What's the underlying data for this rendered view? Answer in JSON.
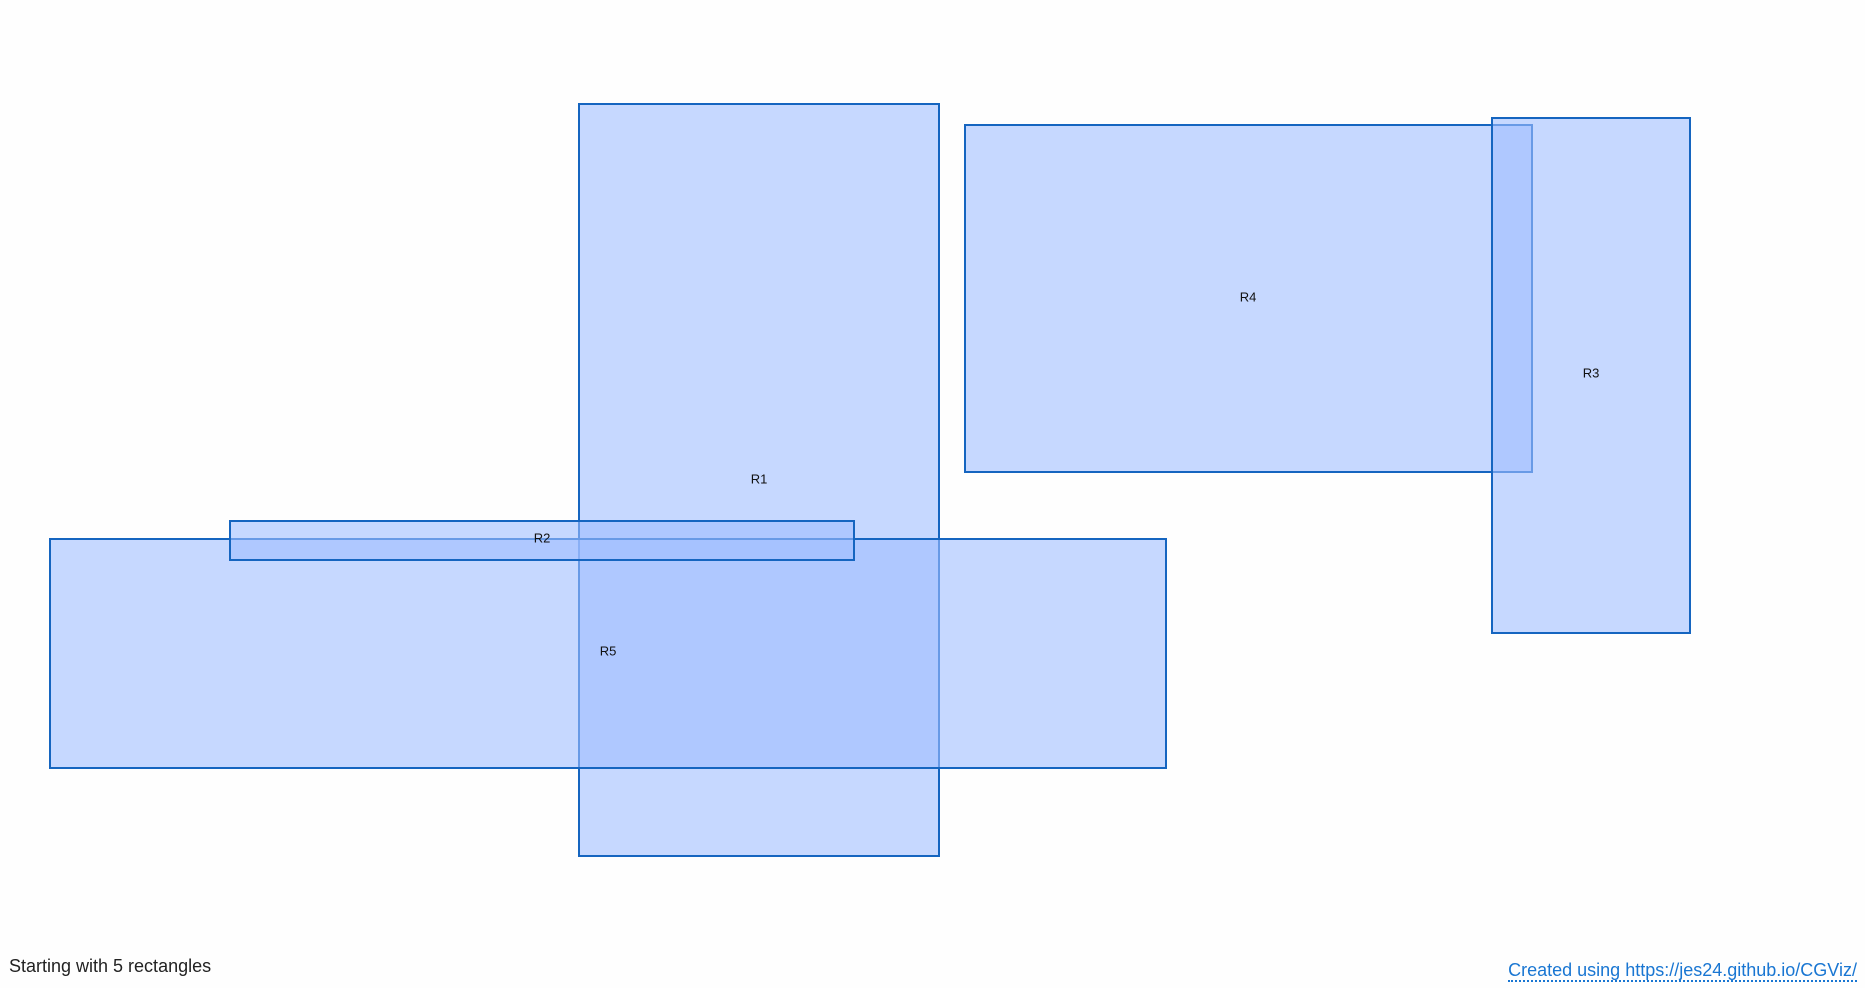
{
  "rectangles": [
    {
      "id": "r1",
      "label": "R1"
    },
    {
      "id": "r2",
      "label": "R2"
    },
    {
      "id": "r3",
      "label": "R3"
    },
    {
      "id": "r4",
      "label": "R4"
    },
    {
      "id": "r5",
      "label": "R5"
    }
  ],
  "footer": {
    "status": "Starting with 5 rectangles",
    "credit": "Created using https://jes24.github.io/CGViz/"
  },
  "colors": {
    "fill": "#a0beff",
    "stroke": "#1565c0",
    "link": "#1976d2"
  }
}
